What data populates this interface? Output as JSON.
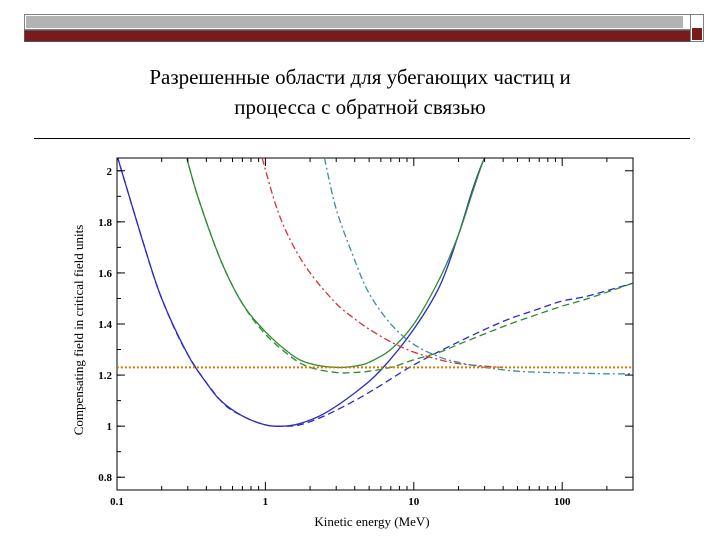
{
  "slide": {
    "title_line1": "Разрешенные области для убегающих частиц и",
    "title_line2": "процесса с обратной связью"
  },
  "colors": {
    "bar_gray": "#b3b3b3",
    "bar_red": "#7a1a1a",
    "blue": "#2a2ac8",
    "green": "#2e8b2e",
    "red": "#d83030",
    "cyan": "#3a8aa8",
    "orange": "#d07a00"
  },
  "chart_data": {
    "type": "line",
    "title": "",
    "xlabel": "Kinetic energy (MeV)",
    "ylabel": "Compensating field in critical field units",
    "x_scale": "log",
    "xlim": [
      0.1,
      300
    ],
    "ylim": [
      0.75,
      2.05
    ],
    "x_ticks": [
      0.1,
      1,
      10,
      100
    ],
    "x_tick_labels": [
      "0.1",
      "1",
      "10",
      "100"
    ],
    "y_ticks": [
      0.8,
      1,
      1.2,
      1.4,
      1.6,
      1.8,
      2
    ],
    "y_tick_labels": [
      "0.8",
      "1",
      "1.2",
      "1.4",
      "1.6",
      "1.8",
      "2"
    ],
    "grid": false,
    "series": [
      {
        "color": "blue",
        "dash": "solid",
        "x": [
          0.1,
          0.15,
          0.2,
          0.3,
          0.4,
          0.5,
          0.7,
          1,
          1.3,
          1.7,
          2.5,
          4,
          6,
          10,
          15,
          20,
          25,
          30,
          35
        ],
        "y": [
          2.06,
          1.72,
          1.5,
          1.28,
          1.17,
          1.1,
          1.04,
          1.005,
          1.0,
          1.01,
          1.05,
          1.13,
          1.22,
          1.38,
          1.55,
          1.75,
          1.93,
          2.05,
          2.1
        ]
      },
      {
        "color": "blue",
        "dash": "dashed",
        "x": [
          0.1,
          0.15,
          0.2,
          0.3,
          0.5,
          0.7,
          1,
          1.3,
          1.7,
          2.5,
          4,
          6,
          10,
          20,
          40,
          70,
          100,
          150,
          300
        ],
        "y": [
          2.06,
          1.72,
          1.5,
          1.28,
          1.1,
          1.04,
          1.005,
          1.0,
          1.005,
          1.04,
          1.1,
          1.16,
          1.24,
          1.33,
          1.41,
          1.46,
          1.49,
          1.51,
          1.56
        ]
      },
      {
        "color": "green",
        "dash": "solid",
        "x": [
          0.28,
          0.35,
          0.5,
          0.7,
          1,
          1.5,
          2,
          3,
          4,
          5,
          7,
          10,
          15,
          20,
          25,
          30,
          35
        ],
        "y": [
          2.1,
          1.9,
          1.65,
          1.48,
          1.37,
          1.28,
          1.245,
          1.23,
          1.235,
          1.25,
          1.3,
          1.4,
          1.58,
          1.75,
          1.92,
          2.05,
          2.1
        ]
      },
      {
        "color": "green",
        "dash": "dashed",
        "x": [
          0.28,
          0.35,
          0.5,
          0.7,
          1,
          1.5,
          2,
          3,
          4,
          5,
          7,
          10,
          15,
          20,
          40,
          70,
          100,
          150,
          300
        ],
        "y": [
          2.1,
          1.9,
          1.65,
          1.48,
          1.36,
          1.27,
          1.23,
          1.21,
          1.21,
          1.215,
          1.23,
          1.26,
          1.29,
          1.32,
          1.39,
          1.44,
          1.47,
          1.5,
          1.56
        ]
      },
      {
        "color": "red",
        "dash": "dashdot",
        "x": [
          0.95,
          1.2,
          1.5,
          2,
          3,
          4,
          5,
          7,
          10,
          15,
          20,
          30,
          40
        ],
        "y": [
          2.05,
          1.85,
          1.72,
          1.6,
          1.48,
          1.42,
          1.38,
          1.33,
          1.29,
          1.26,
          1.245,
          1.235,
          1.23
        ]
      },
      {
        "color": "cyan",
        "dash": "dashdot",
        "x": [
          2.5,
          3,
          4,
          5,
          7,
          10,
          15,
          20,
          30,
          50,
          80,
          120,
          200,
          300
        ],
        "y": [
          2.05,
          1.85,
          1.65,
          1.52,
          1.4,
          1.32,
          1.27,
          1.25,
          1.23,
          1.215,
          1.21,
          1.208,
          1.205,
          1.205
        ]
      },
      {
        "color": "orange",
        "dash": "dotted",
        "x": [
          0.1,
          300
        ],
        "y": [
          1.23,
          1.23
        ]
      }
    ]
  }
}
